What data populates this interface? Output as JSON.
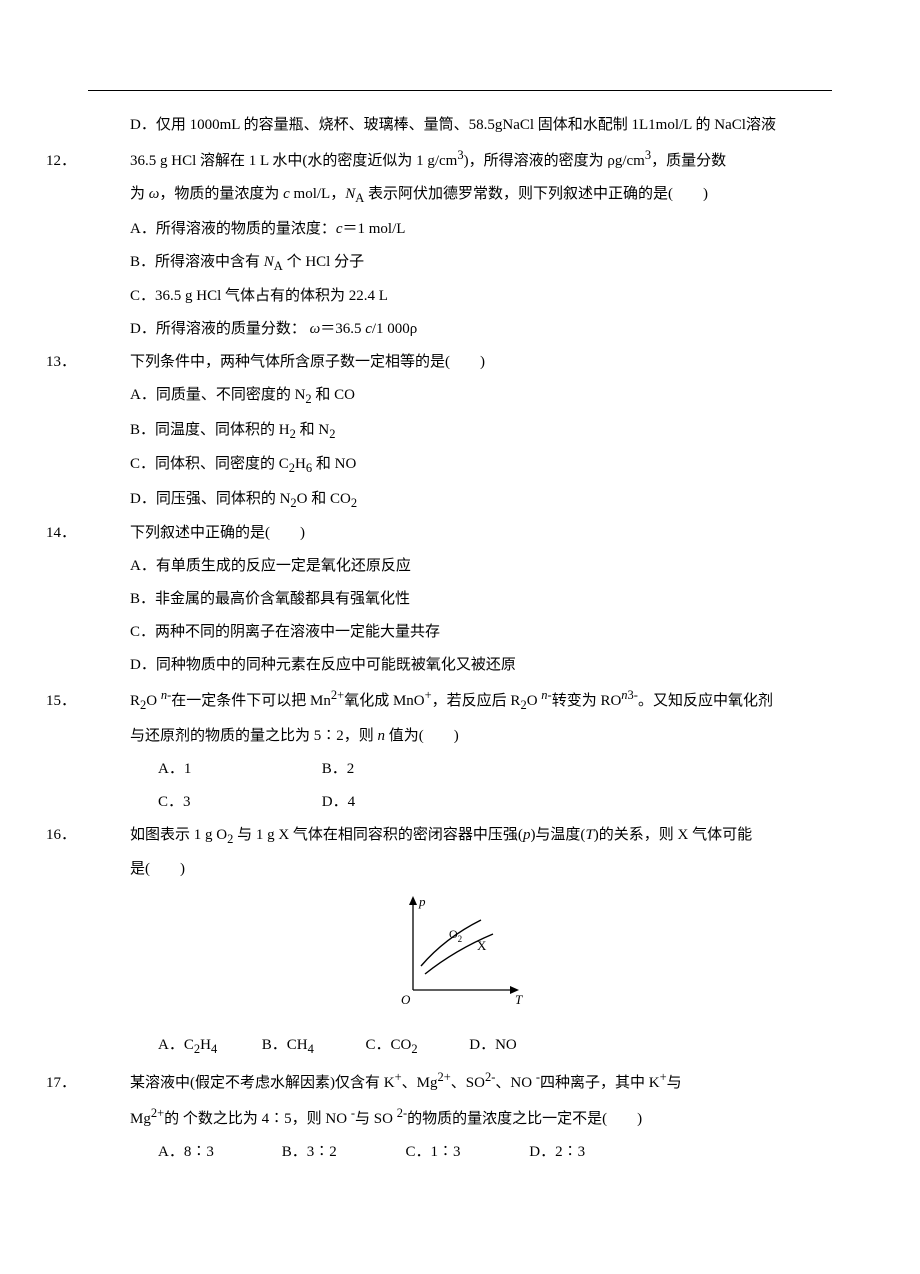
{
  "q11_D": "D．仅用 1000mL 的容量瓶、烧杯、玻璃棒、量筒、58.5gNaCl 固体和水配制 1L1mol/L 的 NaCl溶液",
  "q12": {
    "num": "12．",
    "stem1": "36.5 g HCl 溶解在 1 L 水中(水的密度近似为 1 g/cm<sup>3</sup>)，所得溶液的密度为 ρg/cm<sup>3</sup>，质量分数",
    "stem2": "为 <i>ω</i>，物质的量浓度为 <i>c</i> mol/L，<i>N</i><sub>A</sub> 表示阿伏加德罗常数，则下列叙述中正确的是(　　)",
    "A": "A．所得溶液的物质的量浓度：<i>c</i>＝1 mol/L",
    "B": "B．所得溶液中含有 <i>N</i><sub>A</sub> 个 HCl 分子",
    "C": "C．36.5 g HCl 气体占有的体积为 22.4 L",
    "D": "D．所得溶液的质量分数： <i>ω</i>＝36.5 <i>c</i>/1 000ρ"
  },
  "q13": {
    "num": "13．",
    "stem": "下列条件中，两种气体所含原子数一定相等的是(　　)",
    "A": "A．同质量、不同密度的 N<sub>2</sub> 和 CO",
    "B": "B．同温度、同体积的 H<sub>2</sub> 和 N<sub>2</sub>",
    "C": "C．同体积、同密度的 C<sub>2</sub>H<sub>6</sub> 和 NO",
    "D": "D．同压强、同体积的 N<sub>2</sub>O 和 CO<sub>2</sub>"
  },
  "q14": {
    "num": "14．",
    "stem": "下列叙述中正确的是(　　)",
    "A": "A．有单质生成的反应一定是氧化还原反应",
    "B": "B．非金属的最高价含氧酸都具有强氧化性",
    "C": "C．两种不同的阴离子在溶液中一定能大量共存",
    "D": "D．同种物质中的同种元素在反应中可能既被氧化又被还原"
  },
  "q15": {
    "num": "15．",
    "stem1": "R<sub>2</sub>O <sup><i>n</i>-</sup>在一定条件下可以把 Mn<sup>2+</sup>氧化成 MnO<sup>+</sup>，若反应后 R<sub>2</sub>O <sup><i>n</i>-</sup>转变为 RO<sup><i>n</i>3-</sup>。又知反应中氧化剂",
    "stem2": "与还原剂的物质的量之比为 5∶2，则 <i>n</i> 值为(　　)",
    "row1A": "A．1",
    "row1B": "B．2",
    "row2C": "C．3",
    "row2D": "D．4"
  },
  "q16": {
    "num": "16．",
    "stem1": "如图表示 1 g O<sub>2</sub> 与 1 g X 气体在相同容积的密闭容器中压强(<i>p</i>)与温度(<i>T</i>)的关系，则 X 气体可能",
    "stem2": "是(　　)",
    "A": "A．C<sub>2</sub>H<sub>4</sub>",
    "B": "B．CH<sub>4</sub>",
    "C": "C．CO<sub>2</sub>",
    "D": "D．NO"
  },
  "q17": {
    "num": "17．",
    "stem1": "某溶液中(假定不考虑水解因素)仅含有 K<sup>+</sup>、Mg<sup>2+</sup>、SO<sup>2-</sup>、NO <sup>-</sup>四种离子，其中 K<sup>+</sup>与",
    "stem2": "Mg<sup>2+</sup>的 个数之比为 4∶5，则 NO <sup>-</sup>与 SO <sup>2-</sup>的物质的量浓度之比一定不是(　　)",
    "A": "A．8∶3",
    "B": "B．3∶2",
    "C": "C．1∶3",
    "D": "D．2∶3"
  },
  "diagram": {
    "width": 150,
    "height": 120,
    "axis_color": "#000000",
    "p_label": "p",
    "T_label": "T",
    "O_label": "O",
    "curve1_label": "O",
    "curve1_sub": "2",
    "curve2_label": "X"
  }
}
